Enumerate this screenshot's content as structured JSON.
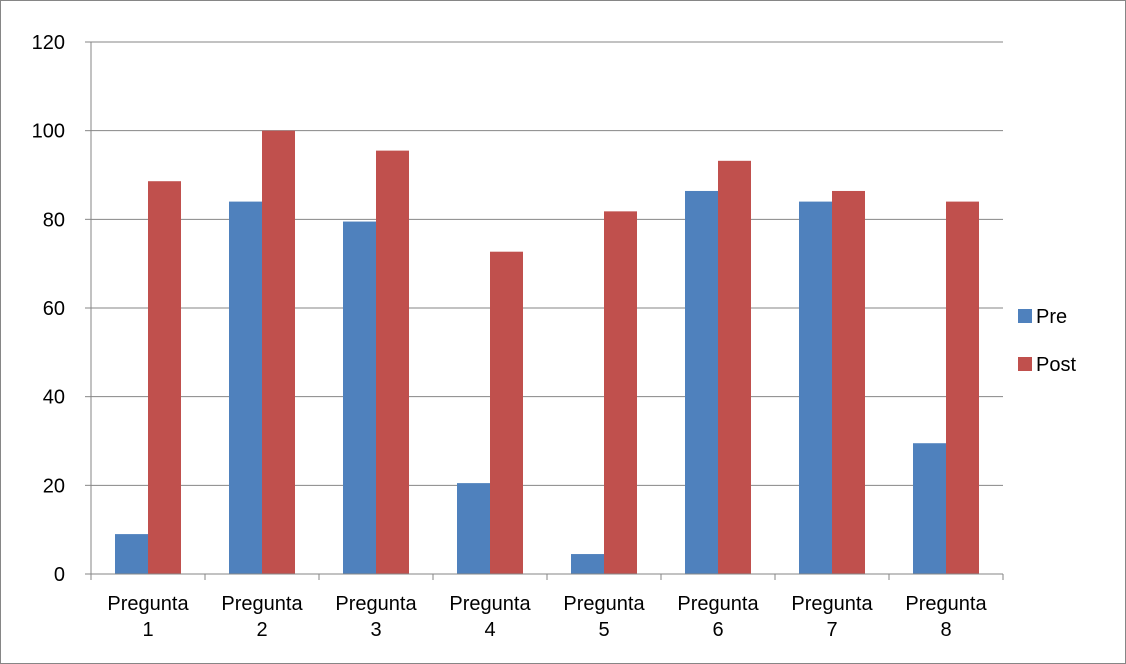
{
  "chart_data": {
    "type": "bar",
    "title": "",
    "xlabel": "",
    "ylabel": "",
    "ylim": [
      0,
      120
    ],
    "yticks": [
      0,
      20,
      40,
      60,
      80,
      100,
      120
    ],
    "grid": true,
    "legend_position": "right",
    "categories": [
      [
        "Pregunta",
        "1"
      ],
      [
        "Pregunta",
        "2"
      ],
      [
        "Pregunta",
        "3"
      ],
      [
        "Pregunta",
        "4"
      ],
      [
        "Pregunta",
        "5"
      ],
      [
        "Pregunta",
        "6"
      ],
      [
        "Pregunta",
        "7"
      ],
      [
        "Pregunta",
        "8"
      ]
    ],
    "series": [
      {
        "name": "Pre",
        "color": "#4F81BD",
        "values": [
          9,
          84,
          79.5,
          20.5,
          4.5,
          86.4,
          84,
          29.5
        ]
      },
      {
        "name": "Post",
        "color": "#C0504D",
        "values": [
          88.6,
          100,
          95.5,
          72.7,
          81.8,
          93.2,
          86.4,
          84
        ]
      }
    ]
  }
}
